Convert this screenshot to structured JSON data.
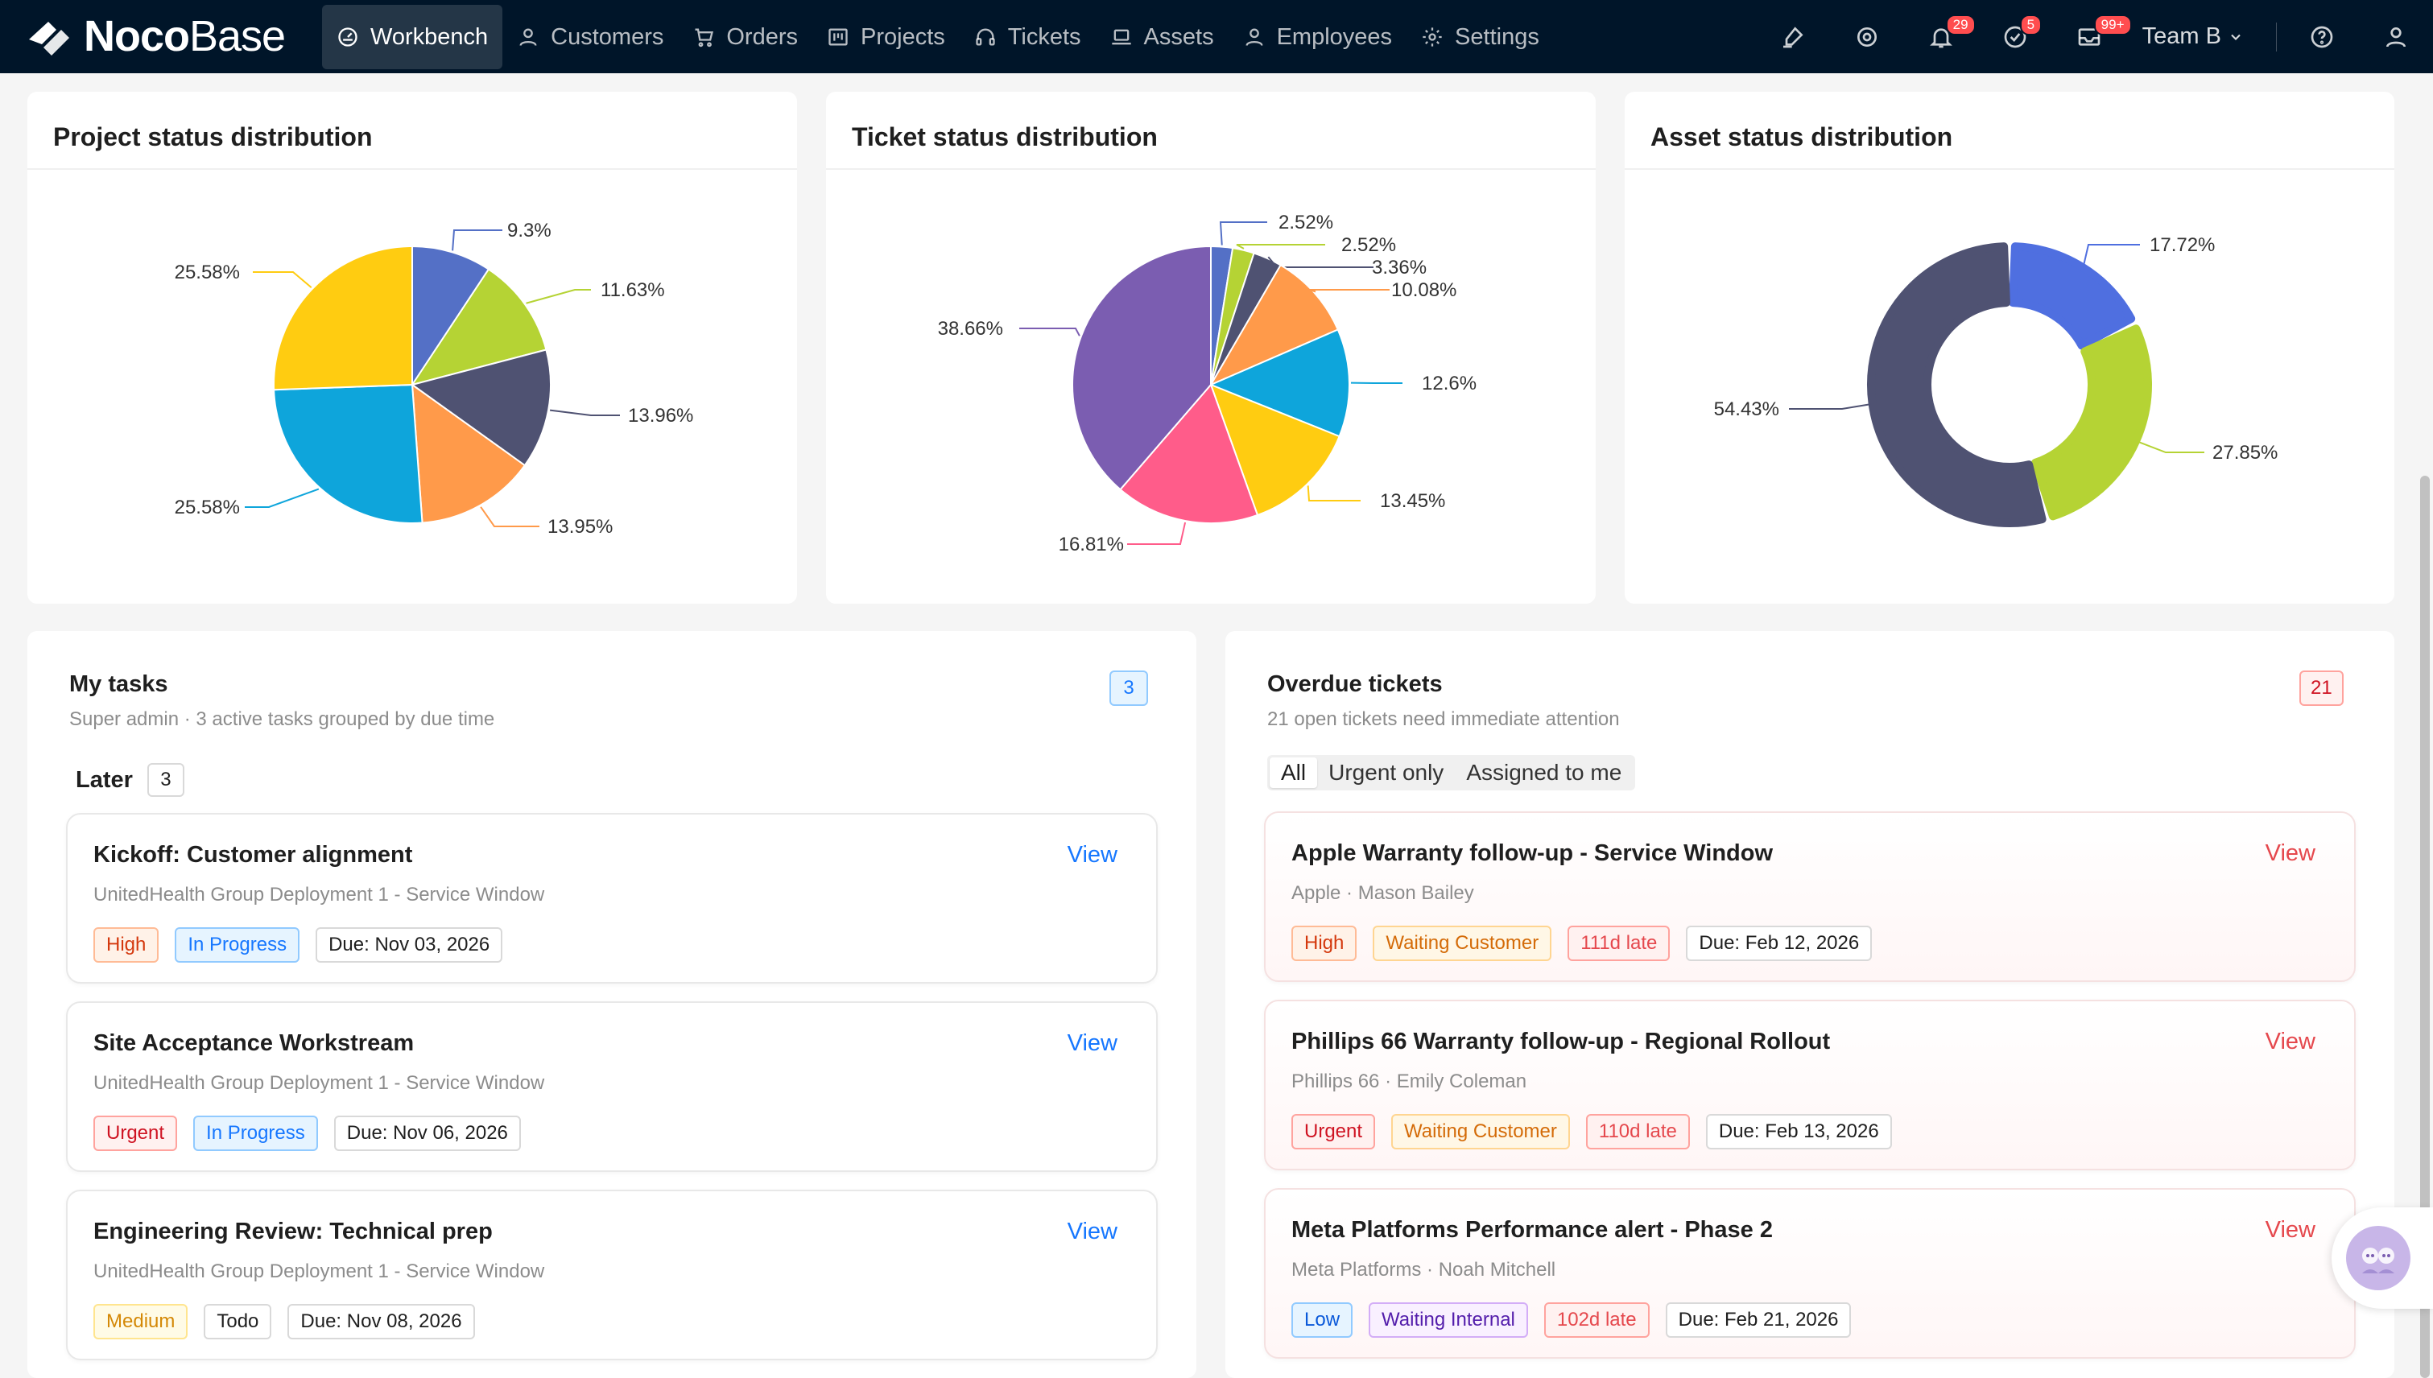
{
  "app": {
    "logo_bold": "Noco",
    "logo_light": "Base"
  },
  "nav": {
    "items": [
      {
        "label": "Workbench",
        "icon": "dashboard-icon",
        "active": true
      },
      {
        "label": "Customers",
        "icon": "user-icon"
      },
      {
        "label": "Orders",
        "icon": "cart-icon"
      },
      {
        "label": "Projects",
        "icon": "project-icon"
      },
      {
        "label": "Tickets",
        "icon": "headset-icon"
      },
      {
        "label": "Assets",
        "icon": "laptop-icon"
      },
      {
        "label": "Employees",
        "icon": "user-icon"
      },
      {
        "label": "Settings",
        "icon": "gear-icon"
      }
    ]
  },
  "toolbar": {
    "notifications_badge": "29",
    "tasks_badge": "5",
    "messages_badge": "99+",
    "team_label": "Team B"
  },
  "charts": {
    "project": {
      "title": "Project status distribution"
    },
    "ticket": {
      "title": "Ticket status distribution"
    },
    "asset": {
      "title": "Asset status distribution"
    }
  },
  "chart_data": [
    {
      "type": "pie",
      "title": "Project status distribution",
      "values": [
        9.3,
        11.63,
        13.96,
        13.95,
        25.58,
        25.58
      ],
      "labels": [
        "9.3%",
        "11.63%",
        "13.96%",
        "13.95%",
        "25.58%",
        "25.58%"
      ],
      "colors": [
        "#5470c6",
        "#b5d334",
        "#4f5272",
        "#ff9a4a",
        "#0ea5db",
        "#ffcc11"
      ]
    },
    {
      "type": "pie",
      "title": "Ticket status distribution",
      "values": [
        2.52,
        2.52,
        3.36,
        10.08,
        12.6,
        13.45,
        16.81,
        38.66
      ],
      "labels": [
        "2.52%",
        "2.52%",
        "3.36%",
        "10.08%",
        "12.6%",
        "13.45%",
        "16.81%",
        "38.66%"
      ],
      "colors": [
        "#5470c6",
        "#b5d334",
        "#4f5272",
        "#ff9a4a",
        "#0ea5db",
        "#ffcc11",
        "#ff5c8a",
        "#7b5db1"
      ]
    },
    {
      "type": "pie",
      "donut": true,
      "title": "Asset status distribution",
      "values": [
        17.72,
        27.85,
        54.43
      ],
      "labels": [
        "17.72%",
        "27.85%",
        "54.43%"
      ],
      "colors": [
        "#4f6fe0",
        "#b5d334",
        "#4f5272"
      ]
    }
  ],
  "my_tasks": {
    "title": "My tasks",
    "subtitle": "Super admin · 3 active tasks grouped by due time",
    "count": "3",
    "group_label": "Later",
    "group_count": "3",
    "view_label": "View",
    "items": [
      {
        "title": "Kickoff: Customer alignment",
        "sub": "UnitedHealth Group Deployment 1 - Service Window",
        "priority": "High",
        "status": "In Progress",
        "due": "Due: Nov 03, 2026"
      },
      {
        "title": "Site Acceptance Workstream",
        "sub": "UnitedHealth Group Deployment 1 - Service Window",
        "priority": "Urgent",
        "status": "In Progress",
        "due": "Due: Nov 06, 2026"
      },
      {
        "title": "Engineering Review: Technical prep",
        "sub": "UnitedHealth Group Deployment 1 - Service Window",
        "priority": "Medium",
        "status": "Todo",
        "due": "Due: Nov 08, 2026"
      }
    ]
  },
  "overdue": {
    "title": "Overdue tickets",
    "subtitle": "21 open tickets need immediate attention",
    "count": "21",
    "filters": [
      "All",
      "Urgent only",
      "Assigned to me"
    ],
    "view_label": "View",
    "items": [
      {
        "title": "Apple Warranty follow-up - Service Window",
        "sub": "Apple · Mason Bailey",
        "priority": "High",
        "status": "Waiting Customer",
        "late": "111d late",
        "due": "Due: Feb 12, 2026"
      },
      {
        "title": "Phillips 66 Warranty follow-up - Regional Rollout",
        "sub": "Phillips 66 · Emily Coleman",
        "priority": "Urgent",
        "status": "Waiting Customer",
        "late": "110d late",
        "due": "Due: Feb 13, 2026"
      },
      {
        "title": "Meta Platforms Performance alert - Phase 2",
        "sub": "Meta Platforms · Noah Mitchell",
        "priority": "Low",
        "status": "Waiting Internal",
        "late": "102d late",
        "due": "Due: Feb 21, 2026"
      }
    ]
  }
}
